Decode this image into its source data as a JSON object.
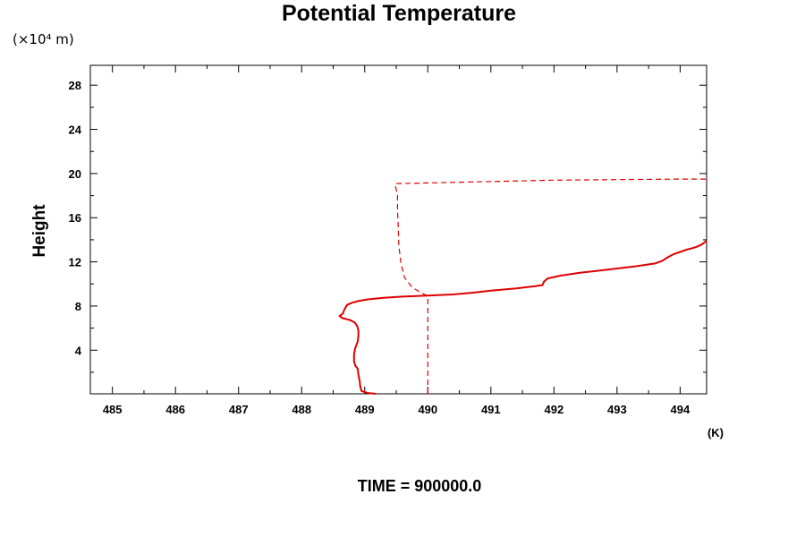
{
  "chart_data": {
    "type": "line",
    "title": "Potential Temperature",
    "y_unit_label": "(×10⁴ m)",
    "x_unit_label": "(K)",
    "ylabel": "Height",
    "footer": "TIME = 900000.0",
    "xlim": [
      484.65,
      494.42
    ],
    "ylim": [
      0.05,
      29.8
    ],
    "x_ticks": [
      485,
      486,
      487,
      488,
      489,
      490,
      491,
      492,
      493,
      494
    ],
    "y_ticks": [
      4,
      8,
      12,
      16,
      20,
      24,
      28
    ],
    "grid": false,
    "line_color": "#dd0000",
    "series": [
      {
        "style": "solid",
        "x": [
          489.18,
          489.05,
          488.95,
          488.93,
          488.92,
          488.9,
          488.89,
          488.85,
          488.83,
          488.83,
          488.85,
          488.89,
          488.9,
          488.9,
          488.88,
          488.84,
          488.78,
          488.72,
          488.65,
          488.6,
          488.65,
          488.68,
          488.72,
          488.8,
          488.9,
          489.05,
          489.3,
          489.6,
          490.0,
          490.4,
          490.7,
          491.0,
          491.4,
          491.7,
          491.82,
          491.84,
          491.9,
          492.1,
          492.4,
          492.7,
          493.0,
          493.3,
          493.6,
          493.72,
          493.8,
          493.9,
          494.0,
          494.1,
          494.2,
          494.28,
          494.35,
          494.42
        ],
        "y": [
          0.05,
          0.12,
          0.3,
          0.7,
          1.2,
          1.8,
          2.3,
          2.6,
          3.0,
          3.6,
          4.2,
          4.8,
          5.3,
          5.8,
          6.2,
          6.5,
          6.7,
          6.8,
          6.9,
          7.1,
          7.3,
          7.7,
          8.1,
          8.3,
          8.45,
          8.6,
          8.75,
          8.85,
          8.95,
          9.05,
          9.2,
          9.4,
          9.6,
          9.8,
          9.9,
          10.2,
          10.5,
          10.75,
          11.0,
          11.2,
          11.4,
          11.6,
          11.85,
          12.1,
          12.4,
          12.7,
          12.9,
          13.1,
          13.25,
          13.4,
          13.6,
          13.9
        ]
      },
      {
        "style": "dashed",
        "x": [
          490.0,
          490.0,
          490.0,
          490.0,
          489.88,
          489.75,
          489.63,
          489.57,
          489.54,
          489.53,
          489.52,
          489.52,
          489.48,
          489.5,
          489.55,
          489.6,
          490.4,
          491.2,
          492.0,
          493.0,
          494.0,
          494.42
        ],
        "y": [
          0.05,
          3.0,
          6.0,
          8.9,
          9.25,
          9.7,
          10.6,
          12.0,
          13.5,
          15.5,
          16.6,
          18.1,
          19.0,
          19.1,
          19.1,
          19.1,
          19.2,
          19.3,
          19.4,
          19.45,
          19.5,
          19.5
        ]
      }
    ]
  }
}
